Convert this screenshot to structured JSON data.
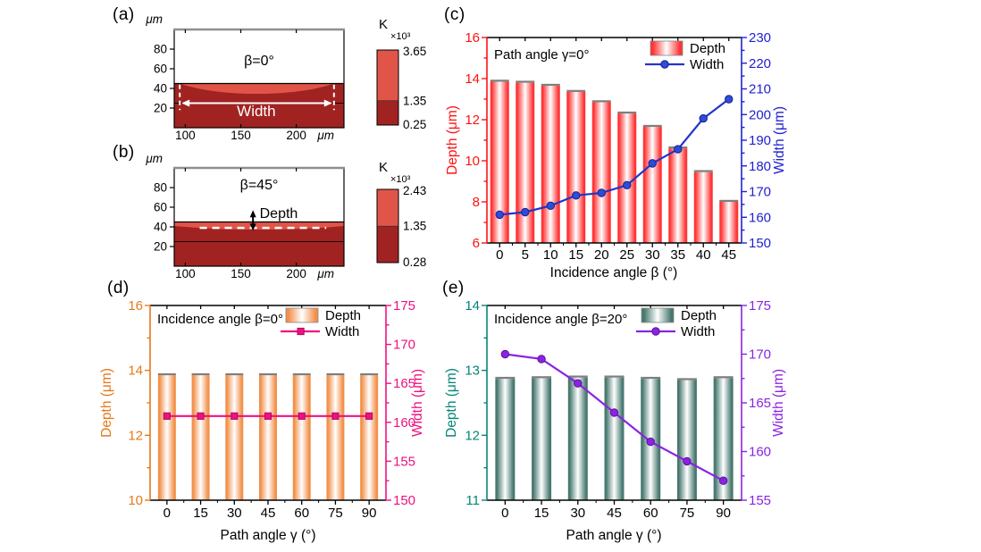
{
  "panel_labels": {
    "a": "(a)",
    "b": "(b)",
    "c": "(c)",
    "d": "(d)",
    "e": "(e)"
  },
  "chart_data": [
    {
      "id": "a",
      "type": "heatmap",
      "title": "β=0°",
      "x_unit": "μm",
      "y_unit": "μm",
      "x_ticks": [
        100,
        150,
        200
      ],
      "y_ticks": [
        20,
        40,
        60,
        80
      ],
      "x_range": [
        90,
        243
      ],
      "y_range": [
        0,
        100
      ],
      "surface_y": 45,
      "substrate_line_y": 25,
      "melt_pool": {
        "x_start": 95,
        "x_end": 234,
        "min_y": 34
      },
      "annotation": {
        "label": "Width",
        "arrow_y": 25,
        "dash_x1": 95,
        "dash_x2": 234,
        "dash_y1": 18,
        "dash_y2": 52,
        "text_x": 164,
        "text_y": 12
      },
      "colorbar": {
        "title": "K",
        "scale": "×10³",
        "max": "3.65",
        "mid": "1.35",
        "min": "0.25",
        "mid_frac": 0.324
      },
      "colors": {
        "melt": "#e15549",
        "substrate": "#a02322"
      }
    },
    {
      "id": "b",
      "type": "heatmap",
      "title": "β=45°",
      "x_unit": "μm",
      "y_unit": "μm",
      "x_ticks": [
        100,
        150,
        200
      ],
      "y_ticks": [
        20,
        40,
        60,
        80
      ],
      "x_range": [
        90,
        243
      ],
      "y_range": [
        0,
        100
      ],
      "surface_y": 45,
      "substrate_line_y": 25,
      "melt_pool": {
        "x_start": 90,
        "x_end": 243,
        "edge_y": 41,
        "min_y": 36
      },
      "annotation": {
        "label": "Depth",
        "arrow_x": 161,
        "arrow_y1": 57,
        "arrow_y2": 36,
        "dash_y": 39,
        "dash_x1": 113,
        "dash_x2": 227,
        "text_x": 167,
        "text_y": 49
      },
      "colorbar": {
        "title": "K",
        "scale": "×10³",
        "max": "2.43",
        "mid": "1.35",
        "min": "0.28",
        "mid_frac": 0.497
      },
      "colors": {
        "melt": "#e15549",
        "substrate": "#a02322"
      }
    },
    {
      "id": "c",
      "type": "bar-line",
      "title": "Path angle γ=0°",
      "xlabel": "Incidence angle β (°)",
      "categories": [
        0,
        5,
        10,
        15,
        20,
        25,
        30,
        35,
        40,
        45
      ],
      "series": [
        {
          "name": "Depth",
          "type": "bar",
          "axis": "left",
          "values": [
            13.85,
            13.8,
            13.65,
            13.35,
            12.85,
            12.3,
            11.65,
            10.6,
            9.45,
            8.0
          ]
        },
        {
          "name": "Width",
          "type": "line",
          "axis": "right",
          "marker": "circle",
          "values": [
            161,
            162,
            164.5,
            168.5,
            169.5,
            172.5,
            181,
            186.5,
            198.5,
            206
          ]
        }
      ],
      "left_axis": {
        "label": "Depth (μm)",
        "min": 6,
        "max": 16,
        "major": 2,
        "minor": 1,
        "color": "#ff1212"
      },
      "right_axis": {
        "label": "Width (μm)",
        "min": 150,
        "max": 230,
        "major": 10,
        "minor": 5,
        "color": "#2121cf"
      },
      "legend_position": "top-right",
      "style": {
        "bar_edge": "#ff3434",
        "bar_cap": "#7e7e7e",
        "line": "#2334cc",
        "marker_fill": "#2e4cd8",
        "marker_edge": "#15208f"
      }
    },
    {
      "id": "d",
      "type": "bar-line",
      "title": "Incidence angle β=0°",
      "xlabel": "Path angle γ (°)",
      "categories": [
        0,
        15,
        30,
        45,
        60,
        75,
        90
      ],
      "series": [
        {
          "name": "Depth",
          "type": "bar",
          "axis": "left",
          "values": [
            13.85,
            13.85,
            13.85,
            13.85,
            13.85,
            13.85,
            13.85
          ]
        },
        {
          "name": "Width",
          "type": "line",
          "axis": "right",
          "marker": "square",
          "values": [
            160.8,
            160.8,
            160.8,
            160.8,
            160.8,
            160.8,
            160.8
          ]
        }
      ],
      "left_axis": {
        "label": "Depth (μm)",
        "min": 10,
        "max": 16,
        "major": 2,
        "minor": 1,
        "color": "#e5791b"
      },
      "right_axis": {
        "label": "Width (μm)",
        "min": 150,
        "max": 175,
        "major": 5,
        "minor": 2.5,
        "color": "#ee1180"
      },
      "legend_position": "top-right",
      "style": {
        "bar_edge": "#f2904a",
        "bar_cap": "#7e7e7e",
        "line": "#ee1180",
        "marker_fill": "#ee1180",
        "marker_edge": "#b00a5e"
      }
    },
    {
      "id": "e",
      "type": "bar-line",
      "title": "Incidence angle β=20°",
      "xlabel": "Path angle γ (°)",
      "categories": [
        0,
        15,
        30,
        45,
        60,
        75,
        90
      ],
      "series": [
        {
          "name": "Depth",
          "type": "bar",
          "axis": "left",
          "values": [
            12.87,
            12.88,
            12.89,
            12.89,
            12.87,
            12.85,
            12.88
          ]
        },
        {
          "name": "Width",
          "type": "line",
          "axis": "right",
          "marker": "circle",
          "values": [
            170,
            169.5,
            167,
            164,
            161,
            159,
            157
          ]
        }
      ],
      "left_axis": {
        "label": "Depth (μm)",
        "min": 11,
        "max": 14,
        "major": 1,
        "minor": 0.5,
        "color": "#068579"
      },
      "right_axis": {
        "label": "Width (μm)",
        "min": 155,
        "max": 175,
        "major": 5,
        "minor": 2.5,
        "color": "#8a24e0"
      },
      "legend_position": "top-right",
      "style": {
        "bar_edge": "#47786f",
        "bar_cap": "#7e7e7e",
        "line": "#8a24e0",
        "marker_fill": "#8a24e0",
        "marker_edge": "#5c0fa0"
      }
    }
  ]
}
